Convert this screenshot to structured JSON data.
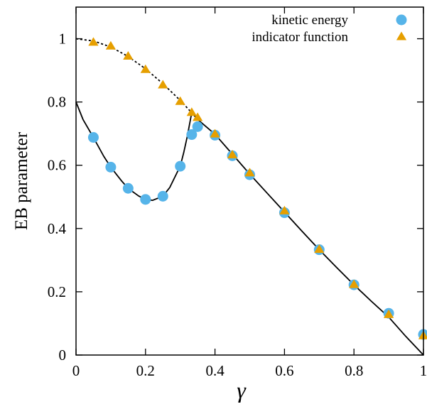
{
  "chart_data": {
    "type": "scatter",
    "title": "",
    "xlabel": "γ",
    "ylabel": "EB parameter",
    "xlim": [
      0,
      1
    ],
    "ylim": [
      0,
      1.1
    ],
    "x_ticks": [
      0,
      0.2,
      0.4,
      0.6,
      0.8,
      1
    ],
    "x_tick_labels": [
      "0",
      "0.2",
      "0.4",
      "0.6",
      "0.8",
      "1"
    ],
    "y_ticks": [
      0,
      0.2,
      0.4,
      0.6,
      0.8,
      1
    ],
    "y_tick_labels": [
      "0",
      "0.2",
      "0.4",
      "0.6",
      "0.8",
      "1"
    ],
    "grid": false,
    "legend_position": "top-right",
    "series": [
      {
        "name": "kinetic energy",
        "marker": "circle",
        "color": "#56b4e9",
        "x": [
          0.05,
          0.1,
          0.15,
          0.2,
          0.25,
          0.3,
          0.333,
          0.35,
          0.4,
          0.45,
          0.5,
          0.6,
          0.7,
          0.8,
          0.9,
          1.0
        ],
        "y": [
          0.688,
          0.594,
          0.527,
          0.492,
          0.502,
          0.597,
          0.697,
          0.722,
          0.695,
          0.63,
          0.57,
          0.45,
          0.333,
          0.222,
          0.132,
          0.065
        ]
      },
      {
        "name": "indicator function",
        "marker": "triangle",
        "color": "#e69f00",
        "x": [
          0.05,
          0.1,
          0.15,
          0.2,
          0.25,
          0.3,
          0.333,
          0.35,
          0.4,
          0.45,
          0.5,
          0.6,
          0.7,
          0.8,
          0.9,
          1.0
        ],
        "y": [
          0.988,
          0.976,
          0.944,
          0.902,
          0.853,
          0.801,
          0.766,
          0.75,
          0.698,
          0.632,
          0.575,
          0.455,
          0.333,
          0.222,
          0.127,
          0.06
        ]
      }
    ],
    "curves": [
      {
        "style": "dotted",
        "color": "#000000",
        "x": [
          0,
          0.05,
          0.1,
          0.15,
          0.2,
          0.25,
          0.3,
          0.333
        ],
        "y": [
          1.0,
          0.993,
          0.974,
          0.944,
          0.905,
          0.858,
          0.805,
          0.766
        ]
      },
      {
        "style": "solid",
        "color": "#000000",
        "x": [
          0,
          0.02,
          0.05,
          0.08,
          0.1,
          0.13,
          0.15,
          0.18,
          0.2,
          0.22,
          0.25,
          0.27,
          0.29,
          0.3,
          0.31,
          0.32,
          0.333
        ],
        "y": [
          0.8,
          0.745,
          0.688,
          0.628,
          0.594,
          0.552,
          0.527,
          0.503,
          0.492,
          0.489,
          0.502,
          0.53,
          0.575,
          0.597,
          0.64,
          0.69,
          0.766
        ]
      },
      {
        "style": "solid",
        "color": "#000000",
        "x": [
          0.333,
          0.35,
          0.4,
          0.45,
          0.5,
          0.55,
          0.6,
          0.65,
          0.7,
          0.75,
          0.8,
          0.85,
          0.9,
          0.95,
          1.0
        ],
        "y": [
          0.766,
          0.745,
          0.698,
          0.635,
          0.572,
          0.512,
          0.452,
          0.392,
          0.333,
          0.277,
          0.222,
          0.17,
          0.12,
          0.058,
          0.0
        ]
      }
    ]
  }
}
